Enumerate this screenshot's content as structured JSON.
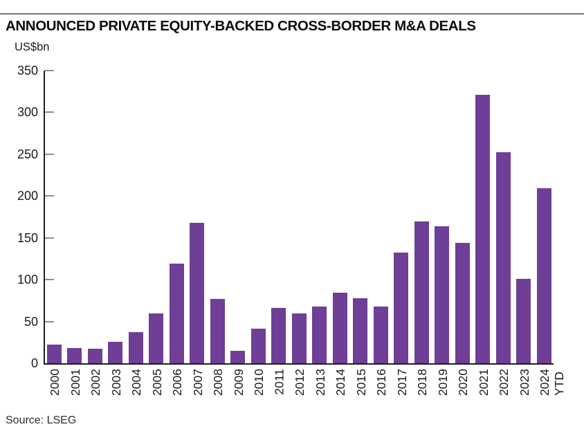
{
  "chart_data": {
    "type": "bar",
    "title": "ANNOUNCED PRIVATE EQUITY-BACKED CROSS-BORDER M&A DEALS",
    "ylabel": "US$bn",
    "xlabel": "",
    "categories": [
      "2000",
      "2001",
      "2002",
      "2003",
      "2004",
      "2005",
      "2006",
      "2007",
      "2008",
      "2009",
      "2010",
      "2011",
      "2012",
      "2013",
      "2014",
      "2015",
      "2016",
      "2017",
      "2018",
      "2019",
      "2020",
      "2021",
      "2022",
      "2023",
      "2024\nYTD"
    ],
    "values": [
      22,
      18,
      17,
      26,
      37,
      60,
      119,
      168,
      77,
      15,
      41,
      66,
      60,
      68,
      84,
      78,
      68,
      132,
      170,
      164,
      144,
      321,
      252,
      101,
      209
    ],
    "ylim": [
      0,
      350
    ],
    "yticks": [
      0,
      50,
      100,
      150,
      200,
      250,
      300,
      350
    ],
    "grid": false,
    "legend": "none",
    "bar_color": "#6F3E96",
    "x_label_rotation": -90
  },
  "footer": {
    "source": "Source: LSEG"
  },
  "colors": {
    "bar": "#6F3E96",
    "axis": "#1f1f1f",
    "tick": "#8c8c8c",
    "top_rule": "#777777",
    "text": "#1a1a1a"
  }
}
